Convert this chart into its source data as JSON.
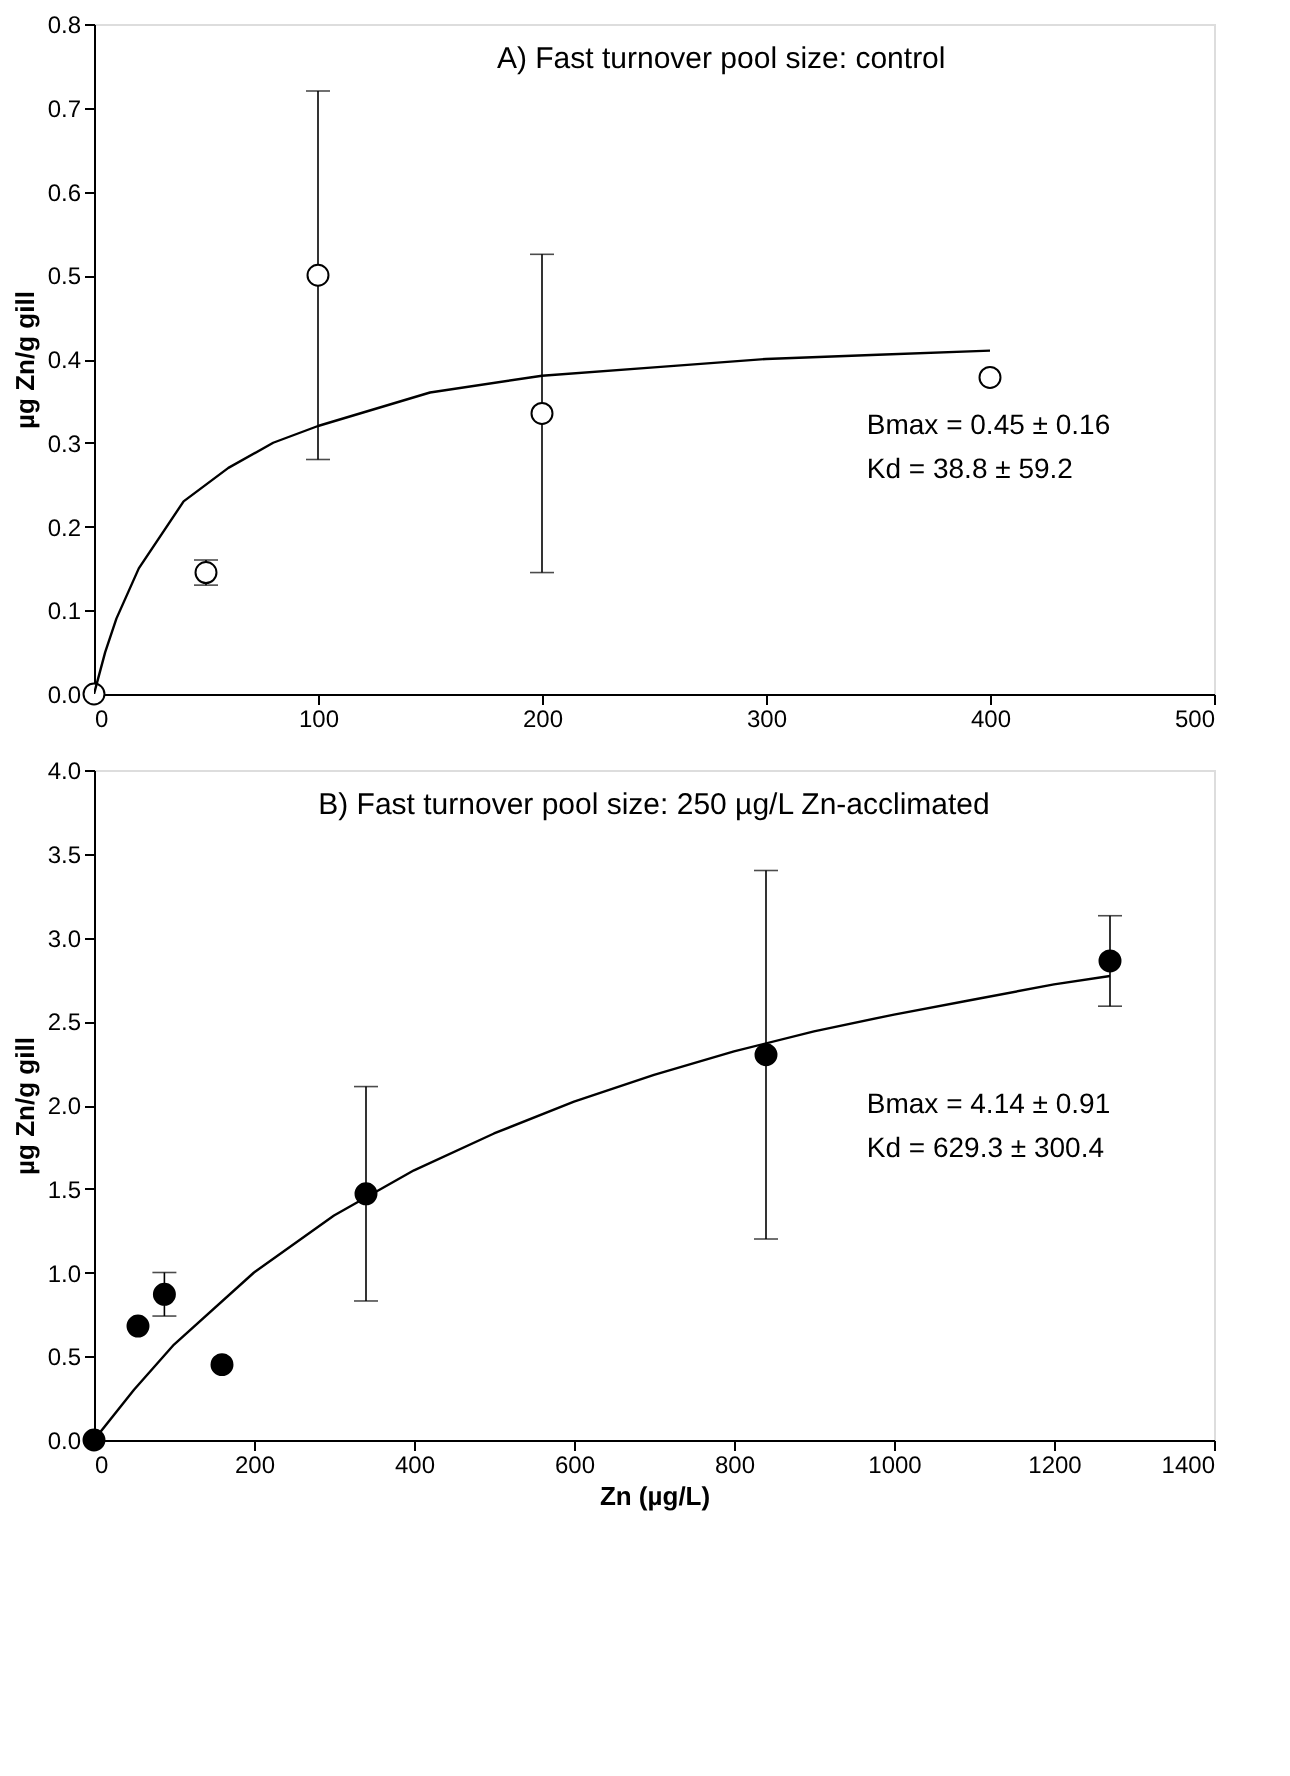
{
  "chart_data": [
    {
      "type": "scatter",
      "title": "A) Fast turnover pool size: control",
      "ylabel": "µg Zn/g gill",
      "xlim": [
        0,
        500
      ],
      "xticks": [
        0,
        100,
        200,
        300,
        400,
        500
      ],
      "ylim": [
        0,
        0.8
      ],
      "yticks": [
        {
          "value": 0,
          "label": "0.0"
        },
        0.1,
        0.2,
        0.3,
        0.4,
        0.5,
        0.6,
        0.7,
        0.8
      ],
      "grid": false,
      "legend": false,
      "marker": "circle",
      "series": [
        {
          "color": "#ffffff",
          "x": [
            0,
            50,
            100,
            200,
            400
          ],
          "values": [
            0,
            0.145,
            0.5,
            0.335,
            0.378
          ],
          "errors": [
            null,
            0.015,
            0.22,
            0.19,
            null
          ]
        },
        {
          "type": "line",
          "marker": "none",
          "line_style": "solid",
          "color": "#000000",
          "x": [
            0,
            5,
            10,
            20,
            40,
            60,
            80,
            100,
            150,
            200,
            250,
            300,
            350,
            400
          ],
          "values": [
            0,
            0.05,
            0.09,
            0.15,
            0.23,
            0.27,
            0.3,
            0.32,
            0.36,
            0.38,
            0.39,
            0.4,
            0.405,
            0.41
          ]
        }
      ],
      "annotations": [
        "Bmax = 0.45 ± 0.16",
        "Kd = 38.8 ± 59.2"
      ]
    },
    {
      "type": "scatter",
      "title": "B) Fast turnover pool size: 250 µg/L Zn-acclimated",
      "xlabel": "Zn (µg/L)",
      "ylabel": "µg Zn/g gill",
      "xlim": [
        0,
        1400
      ],
      "xticks": [
        0,
        200,
        400,
        600,
        800,
        1000,
        1200,
        1400
      ],
      "ylim": [
        0,
        4.0
      ],
      "yticks": [
        {
          "value": 0,
          "label": "0.0"
        },
        0.5,
        {
          "value": 1,
          "label": "1.0"
        },
        1.5,
        {
          "value": 2,
          "label": "2.0"
        },
        2.5,
        {
          "value": 3,
          "label": "3.0"
        },
        3.5,
        {
          "value": 4,
          "label": "4.0"
        }
      ],
      "grid": false,
      "legend": false,
      "marker": "circle",
      "series": [
        {
          "color": "#000000",
          "x": [
            0,
            55,
            88,
            160,
            340,
            840,
            1270
          ],
          "values": [
            0,
            0.68,
            0.87,
            0.45,
            1.47,
            2.3,
            2.86
          ],
          "errors": [
            null,
            null,
            0.13,
            null,
            0.64,
            1.1,
            0.27
          ]
        },
        {
          "type": "line",
          "marker": "none",
          "line_style": "solid",
          "color": "#000000",
          "x": [
            0,
            50,
            100,
            200,
            300,
            400,
            500,
            600,
            700,
            800,
            900,
            1000,
            1100,
            1200,
            1270
          ],
          "values": [
            0,
            0.3,
            0.57,
            1.0,
            1.34,
            1.61,
            1.83,
            2.02,
            2.18,
            2.32,
            2.44,
            2.54,
            2.63,
            2.72,
            2.77
          ]
        }
      ],
      "annotations": [
        "Bmax = 4.14 ± 0.91",
        "Kd = 629.3 ± 300.4"
      ]
    }
  ]
}
